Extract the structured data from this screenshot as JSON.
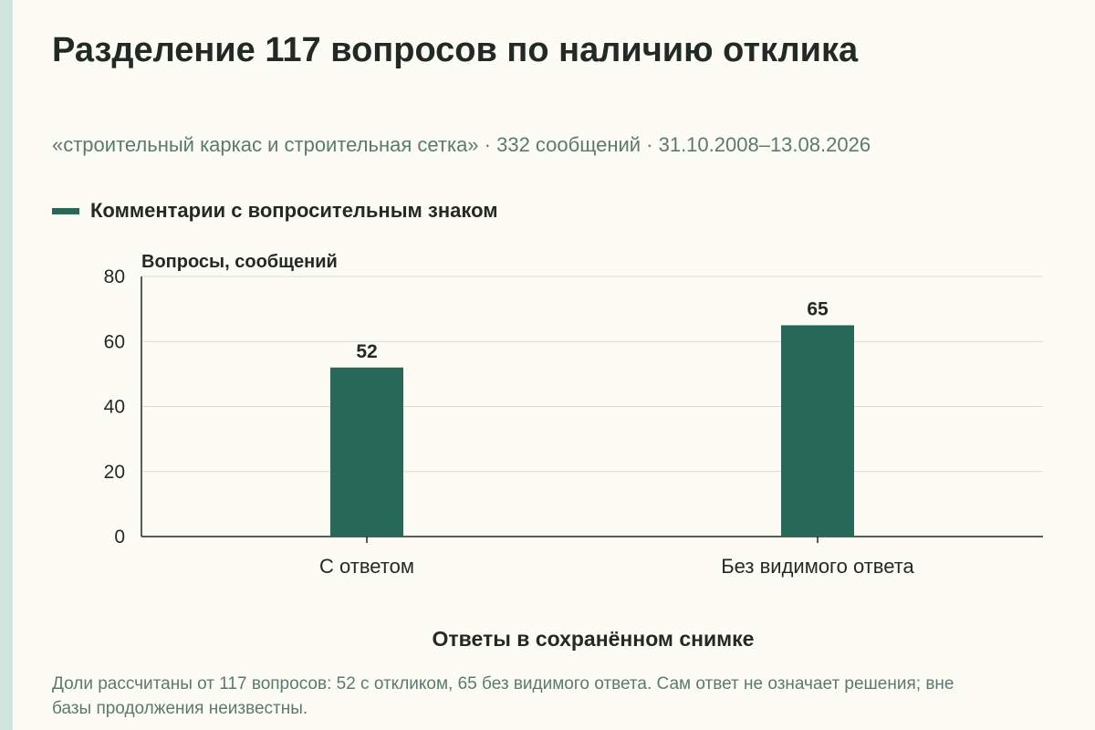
{
  "title": "Разделение 117 вопросов по наличию отклика",
  "subtitle": "«строительный каркас и строительная сетка» · 332 сообщений · 31.10.2008–13.08.2026",
  "footnote": "Доли рассчитаны от 117 вопросов: 52 с откликом, 65 без видимого ответа. Сам ответ не означает решения; вне базы продолжения неизвестны.",
  "colors": {
    "bar": "#276859",
    "grid": "#d9dbd2",
    "axis": "#1f2a24",
    "text": "#222a25",
    "muted": "#5b7a6f"
  },
  "chart_data": {
    "type": "bar",
    "categories": [
      "С ответом",
      "Без видимого ответа"
    ],
    "series": [
      {
        "name": "Комментарии с вопросительным знаком",
        "values": [
          52,
          65
        ]
      }
    ],
    "data_labels": [
      "52",
      "65"
    ],
    "ylabel": "Вопросы, сообщений",
    "xlabel": "Ответы в сохранённом снимке",
    "ylim": [
      0,
      80
    ],
    "yticks": [
      0,
      20,
      40,
      60,
      80
    ],
    "grid": true,
    "legend_position": "top-left"
  }
}
